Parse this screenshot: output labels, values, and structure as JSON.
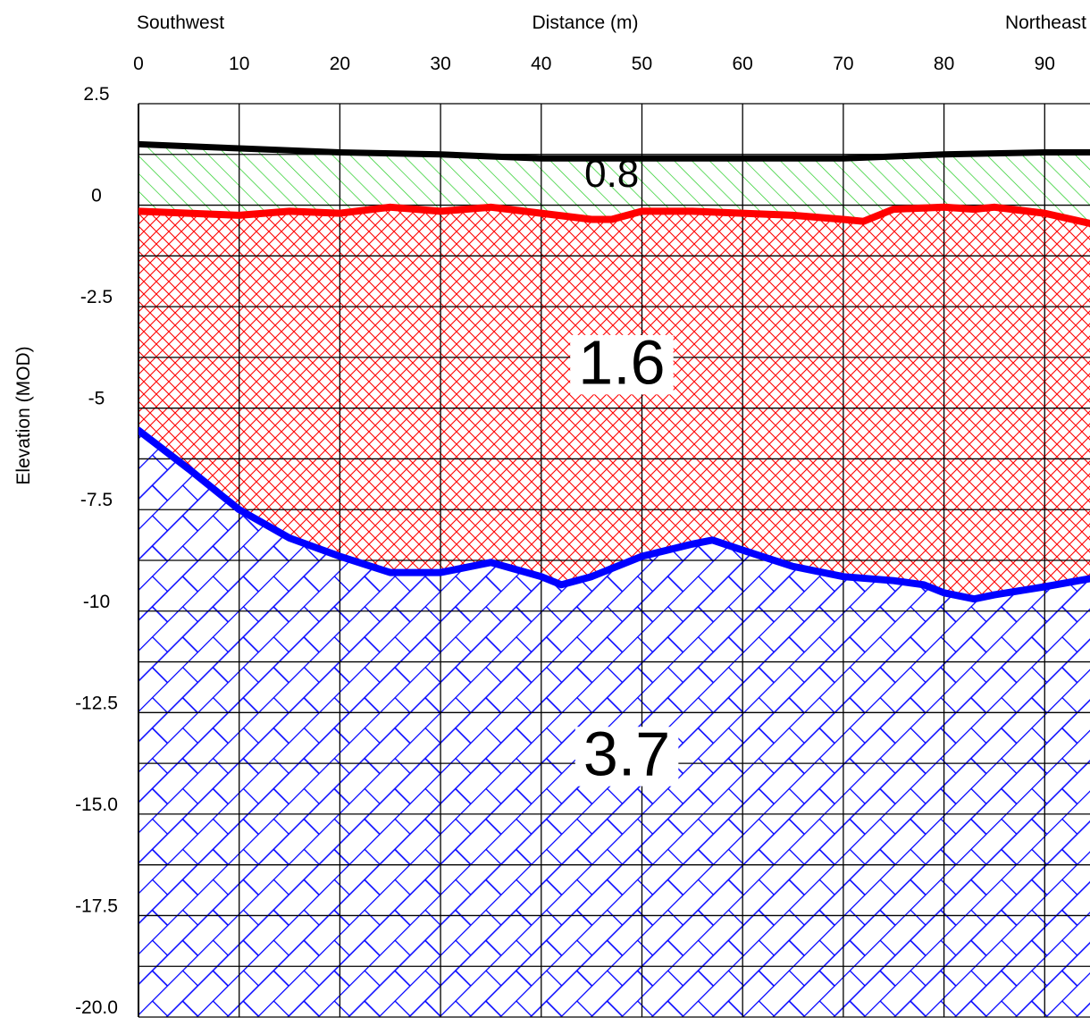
{
  "chart_data": {
    "type": "area",
    "title": "",
    "left_header": "Southwest",
    "right_header": "Northeast",
    "xlabel": "Distance (m)",
    "ylabel": "Elevation (MOD)",
    "xlim": [
      0,
      94.5
    ],
    "ylim": [
      -20.0,
      2.5
    ],
    "x_ticks": [
      "0",
      "10",
      "20",
      "30",
      "40",
      "50",
      "60",
      "70",
      "80",
      "90"
    ],
    "y_ticks": [
      {
        "value": 2.5,
        "label": "2.5"
      },
      {
        "value": 0,
        "label": "0"
      },
      {
        "value": -2.5,
        "label": "-2.5"
      },
      {
        "value": -5,
        "label": "-5"
      },
      {
        "value": -7.5,
        "label": "-7.5"
      },
      {
        "value": -10,
        "label": "-10"
      },
      {
        "value": -12.5,
        "label": "-12.5"
      },
      {
        "value": -15.0,
        "label": "-15.0"
      },
      {
        "value": -17.5,
        "label": "-17.5"
      },
      {
        "value": -20.0,
        "label": "-20.0"
      }
    ],
    "grid": true,
    "series": [
      {
        "color": "#000000",
        "points": [
          [
            0,
            1.5
          ],
          [
            10,
            1.4
          ],
          [
            20,
            1.3
          ],
          [
            30,
            1.25
          ],
          [
            40,
            1.15
          ],
          [
            50,
            1.15
          ],
          [
            60,
            1.15
          ],
          [
            70,
            1.15
          ],
          [
            80,
            1.25
          ],
          [
            90,
            1.3
          ],
          [
            94.5,
            1.3
          ]
        ]
      },
      {
        "color": "#ff0000",
        "points": [
          [
            0,
            -0.15
          ],
          [
            5,
            -0.2
          ],
          [
            10,
            -0.25
          ],
          [
            15,
            -0.15
          ],
          [
            20,
            -0.2
          ],
          [
            25,
            -0.05
          ],
          [
            30,
            -0.15
          ],
          [
            35,
            -0.05
          ],
          [
            40,
            -0.2
          ],
          [
            45,
            -0.35
          ],
          [
            47,
            -0.35
          ],
          [
            50,
            -0.15
          ],
          [
            55,
            -0.15
          ],
          [
            60,
            -0.2
          ],
          [
            65,
            -0.25
          ],
          [
            70,
            -0.35
          ],
          [
            72,
            -0.4
          ],
          [
            75,
            -0.1
          ],
          [
            80,
            -0.05
          ],
          [
            83,
            -0.1
          ],
          [
            85,
            -0.05
          ],
          [
            90,
            -0.2
          ],
          [
            94.5,
            -0.45
          ]
        ]
      },
      {
        "color": "#0000ff",
        "points": [
          [
            0,
            -5.55
          ],
          [
            5,
            -6.5
          ],
          [
            10,
            -7.5
          ],
          [
            15,
            -8.2
          ],
          [
            20,
            -8.65
          ],
          [
            25,
            -9.05
          ],
          [
            30,
            -9.05
          ],
          [
            35,
            -8.8
          ],
          [
            40,
            -9.15
          ],
          [
            42,
            -9.35
          ],
          [
            45,
            -9.15
          ],
          [
            50,
            -8.65
          ],
          [
            55,
            -8.35
          ],
          [
            57,
            -8.25
          ],
          [
            60,
            -8.5
          ],
          [
            65,
            -8.9
          ],
          [
            70,
            -9.15
          ],
          [
            75,
            -9.25
          ],
          [
            78,
            -9.35
          ],
          [
            80,
            -9.55
          ],
          [
            83,
            -9.7
          ],
          [
            85,
            -9.6
          ],
          [
            90,
            -9.4
          ],
          [
            94.5,
            -9.2
          ]
        ]
      }
    ],
    "annotations": [
      {
        "text": "0.8",
        "x": 47,
        "y": 0.45,
        "size": "mid"
      },
      {
        "text": "1.6",
        "x": 48,
        "y": -4.4,
        "size": "big"
      },
      {
        "text": "3.7",
        "x": 48.5,
        "y": -14.05,
        "size": "big"
      }
    ],
    "colors": {
      "topsoil_hatch": "#22cc22",
      "clay_hatch": "#ff0000",
      "limestone_hatch": "#0000ff",
      "grid": "#000000"
    }
  }
}
